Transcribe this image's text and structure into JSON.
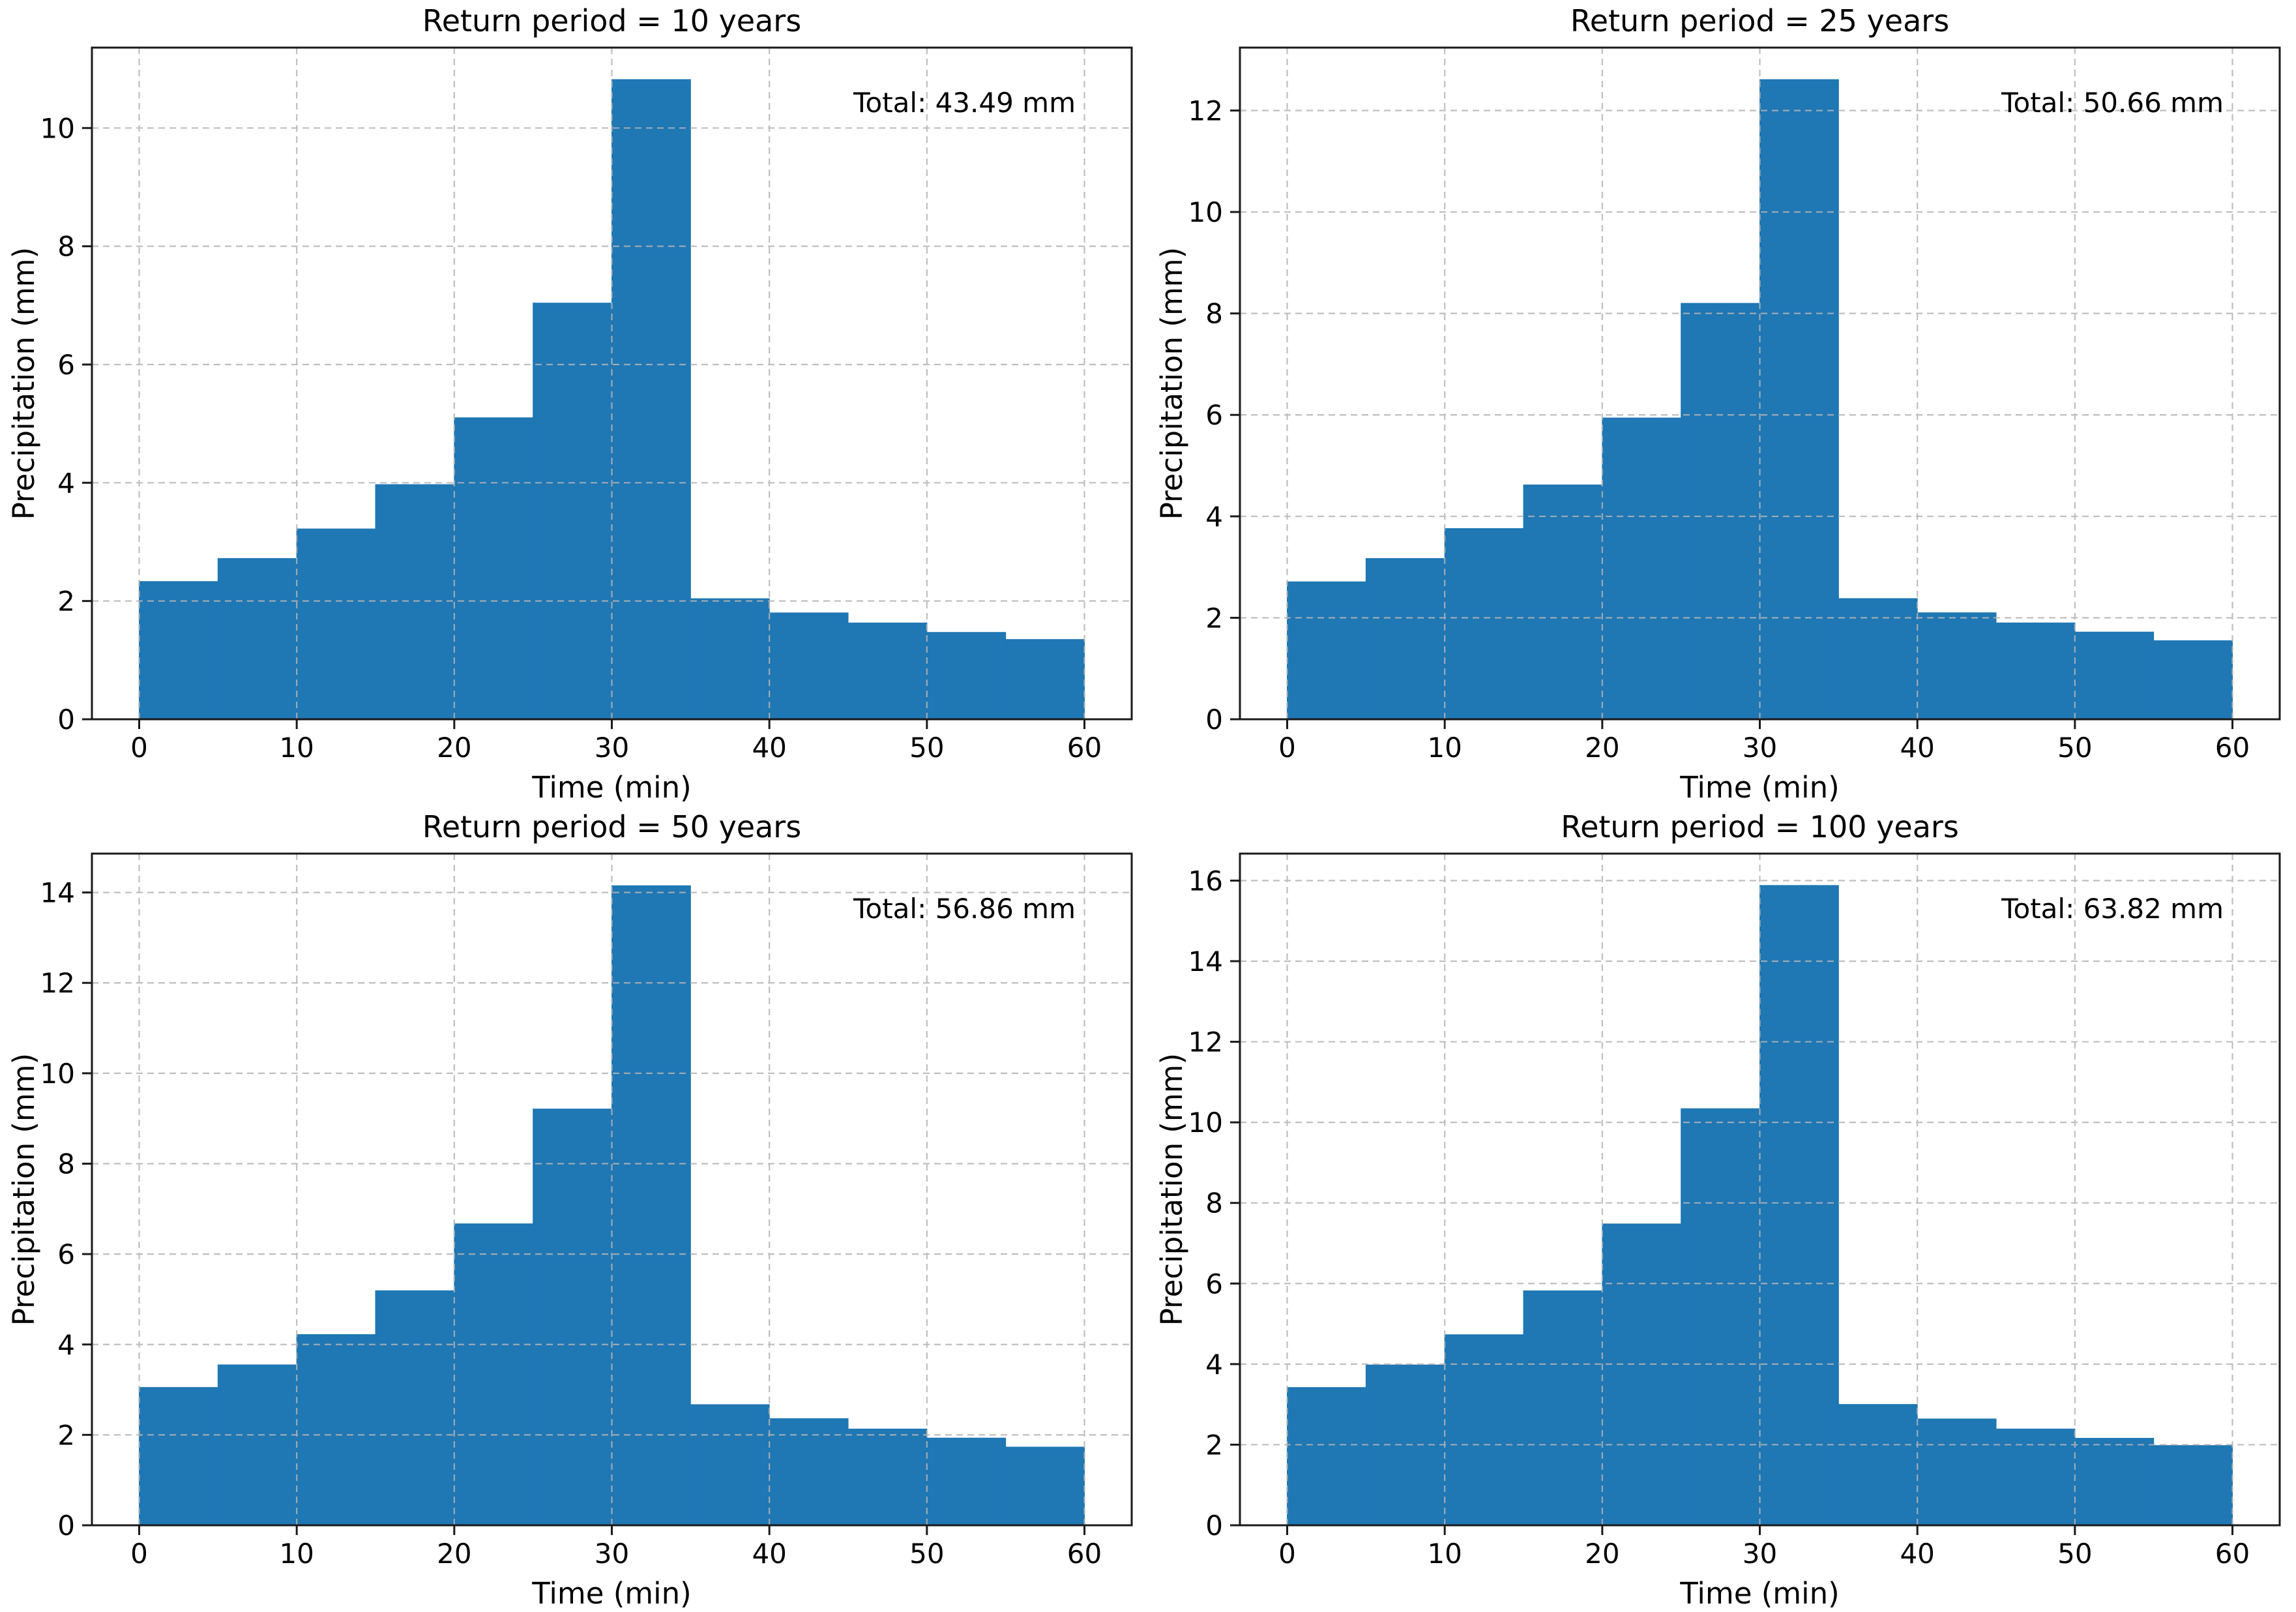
{
  "figure": {
    "background": "#ffffff",
    "rows": 2,
    "cols": 2
  },
  "styles": {
    "bar_color": "#1f77b4",
    "spine_color": "#1a1a1a",
    "text_color": "#000000",
    "grid_color": "#b4b4b4",
    "grid_style": "dashed"
  },
  "chart_data": [
    {
      "type": "bar",
      "title": "Return period = 10 years",
      "annotation": "Total: 43.49 mm",
      "total_mm": 43.49,
      "xlabel": "Time (min)",
      "ylabel": "Precipitation (mm)",
      "bin_start_min": [
        0,
        5,
        10,
        15,
        20,
        25,
        30,
        35,
        40,
        45,
        50,
        55
      ],
      "bin_width_min": 5,
      "values_mm": [
        2.33,
        2.72,
        3.22,
        3.97,
        5.1,
        7.04,
        10.82,
        2.04,
        1.8,
        1.63,
        1.47,
        1.35
      ],
      "xticks": [
        0,
        10,
        20,
        30,
        40,
        50,
        60
      ],
      "yticks": [
        0,
        2,
        4,
        6,
        8,
        10
      ],
      "xlim": [
        -3,
        63
      ],
      "ylim": [
        0,
        11.36
      ],
      "grid": true,
      "legend": false
    },
    {
      "type": "bar",
      "title": "Return period = 25 years",
      "annotation": "Total: 50.66 mm",
      "total_mm": 50.66,
      "xlabel": "Time (min)",
      "ylabel": "Precipitation (mm)",
      "bin_start_min": [
        0,
        5,
        10,
        15,
        20,
        25,
        30,
        35,
        40,
        45,
        50,
        55
      ],
      "bin_width_min": 5,
      "values_mm": [
        2.71,
        3.17,
        3.76,
        4.62,
        5.94,
        8.2,
        12.61,
        2.38,
        2.1,
        1.9,
        1.72,
        1.55
      ],
      "xticks": [
        0,
        10,
        20,
        30,
        40,
        50,
        60
      ],
      "yticks": [
        0,
        2,
        4,
        6,
        8,
        10,
        12
      ],
      "xlim": [
        -3,
        63
      ],
      "ylim": [
        0,
        13.24
      ],
      "grid": true,
      "legend": false
    },
    {
      "type": "bar",
      "title": "Return period = 50 years",
      "annotation": "Total: 56.86 mm",
      "total_mm": 56.86,
      "xlabel": "Time (min)",
      "ylabel": "Precipitation (mm)",
      "bin_start_min": [
        0,
        5,
        10,
        15,
        20,
        25,
        30,
        35,
        40,
        45,
        50,
        55
      ],
      "bin_width_min": 5,
      "values_mm": [
        3.05,
        3.55,
        4.22,
        5.19,
        6.67,
        9.21,
        14.15,
        2.67,
        2.36,
        2.13,
        1.93,
        1.73
      ],
      "xticks": [
        0,
        10,
        20,
        30,
        40,
        50,
        60
      ],
      "yticks": [
        0,
        2,
        4,
        6,
        8,
        10,
        12,
        14
      ],
      "xlim": [
        -3,
        63
      ],
      "ylim": [
        0,
        14.86
      ],
      "grid": true,
      "legend": false
    },
    {
      "type": "bar",
      "title": "Return period = 100 years",
      "annotation": "Total: 63.82 mm",
      "total_mm": 63.82,
      "xlabel": "Time (min)",
      "ylabel": "Precipitation (mm)",
      "bin_start_min": [
        0,
        5,
        10,
        15,
        20,
        25,
        30,
        35,
        40,
        45,
        50,
        55
      ],
      "bin_width_min": 5,
      "values_mm": [
        3.42,
        3.98,
        4.73,
        5.82,
        7.48,
        10.34,
        15.88,
        3.0,
        2.64,
        2.39,
        2.16,
        1.98
      ],
      "xticks": [
        0,
        10,
        20,
        30,
        40,
        50,
        60
      ],
      "yticks": [
        0,
        2,
        4,
        6,
        8,
        10,
        12,
        14,
        16
      ],
      "xlim": [
        -3,
        63
      ],
      "ylim": [
        0,
        16.67
      ],
      "grid": true,
      "legend": false
    }
  ]
}
